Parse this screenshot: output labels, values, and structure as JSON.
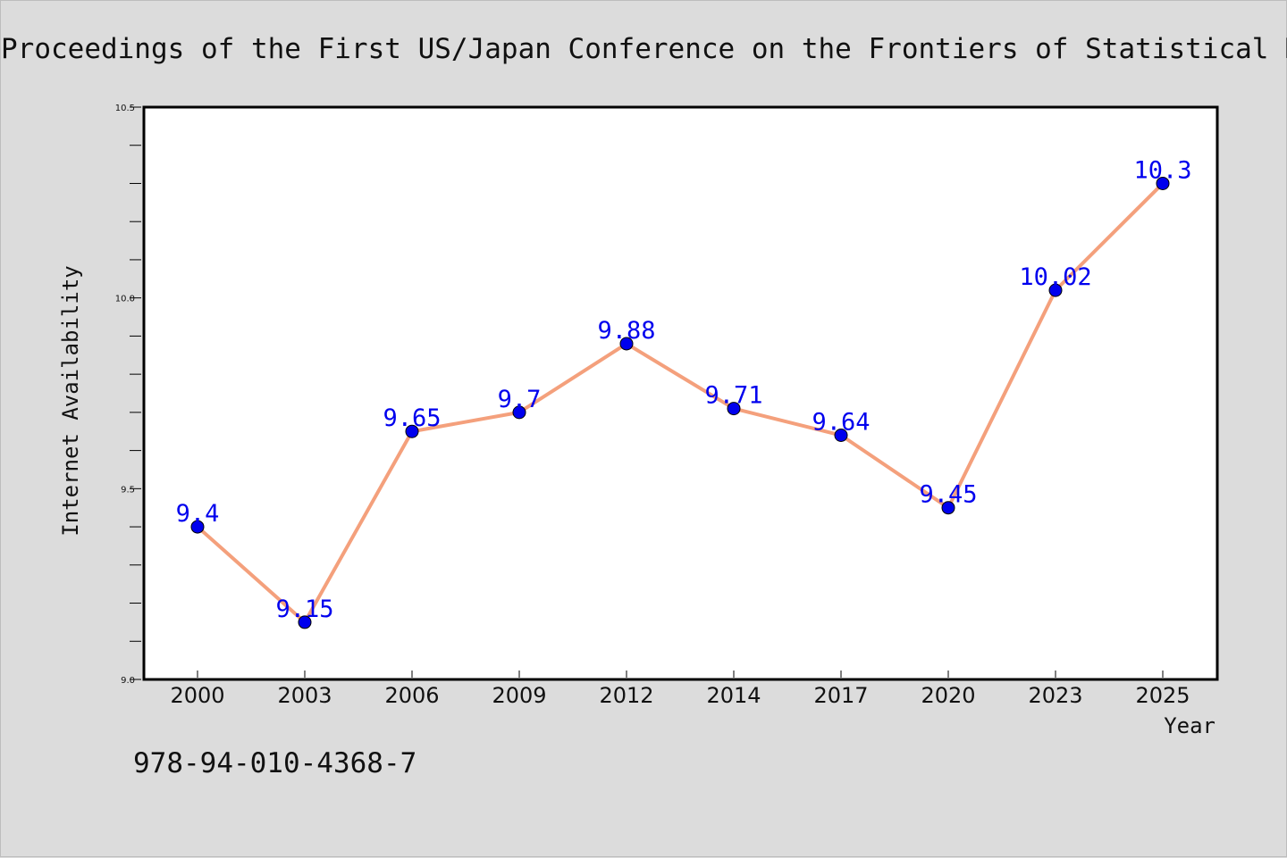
{
  "chart_data": {
    "type": "line",
    "title": "Proceedings of the First US/Japan Conference on the Frontiers of Statistical Mod",
    "xlabel": "Year",
    "ylabel": "Internet Availability",
    "categories": [
      "2000",
      "2003",
      "2006",
      "2009",
      "2012",
      "2014",
      "2017",
      "2020",
      "2023",
      "2025"
    ],
    "series": [
      {
        "values": [
          9.4,
          9.15,
          9.65,
          9.7,
          9.88,
          9.71,
          9.64,
          9.45,
          10.02,
          10.3
        ],
        "labels": [
          "9.4",
          "9.15",
          "9.65",
          "9.7",
          "9.88",
          "9.71",
          "9.64",
          "9.45",
          "10.02",
          "10.3"
        ],
        "line_color": "#f4a07c",
        "marker_color": "#0000ee",
        "label_color": "#0000ee"
      }
    ],
    "ylim": [
      9.0,
      10.5
    ],
    "yticks": [
      "9.0",
      "9.5",
      "10.0",
      "10.5"
    ],
    "ytick_values": [
      9.0,
      9.5,
      10.0,
      10.5
    ],
    "grid": false,
    "legend": "none"
  },
  "footer": {
    "isbn": "978-94-010-4368-7"
  }
}
